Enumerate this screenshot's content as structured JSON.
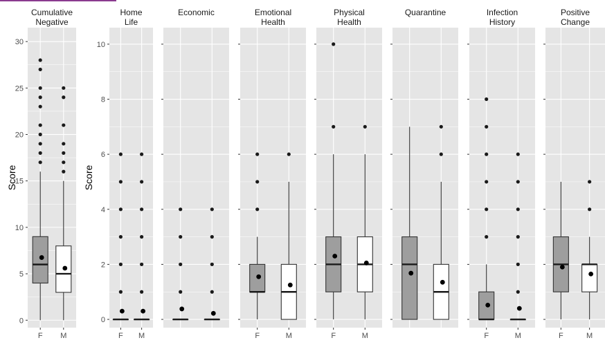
{
  "colors": {
    "panel_bg": "#e5e5e5",
    "grid": "#ffffff",
    "female_fill": "#9e9e9e",
    "male_fill": "#ffffff",
    "box_stroke": "#333333",
    "point": "#1a1a1a",
    "top_accent": "#8a3a8f"
  },
  "chart_data": [
    {
      "type": "box",
      "title": "Cumulative\nNegative",
      "ylabel": "Score",
      "ylim": [
        -0.8,
        31.5
      ],
      "yticks": [
        0,
        5,
        10,
        15,
        20,
        25,
        30
      ],
      "categories": [
        "F",
        "M"
      ],
      "boxes": [
        {
          "category": "F",
          "q1": 4,
          "median": 6,
          "q3": 9,
          "whisker_low": 0,
          "whisker_high": 16,
          "mean": 6.75,
          "outliers": [
            17,
            18,
            19,
            20,
            21,
            23,
            24,
            25,
            27,
            28
          ]
        },
        {
          "category": "M",
          "q1": 3,
          "median": 5,
          "q3": 8,
          "whisker_low": 0,
          "whisker_high": 15,
          "mean": 5.6,
          "outliers": [
            16,
            17,
            18,
            19,
            21,
            24,
            25
          ]
        }
      ]
    },
    {
      "type": "box",
      "title": "Home\nLife",
      "ylabel": "Score",
      "ylim": [
        -0.3,
        10.6
      ],
      "yticks": [
        0,
        2,
        4,
        6,
        8,
        10
      ],
      "categories": [
        "F",
        "M"
      ],
      "boxes": [
        {
          "category": "F",
          "q1": 0,
          "median": 0,
          "q3": 0,
          "whisker_low": 0,
          "whisker_high": 0,
          "mean": 0.3,
          "outliers": [
            1,
            2,
            3,
            4,
            5,
            6
          ]
        },
        {
          "category": "M",
          "q1": 0,
          "median": 0,
          "q3": 0,
          "whisker_low": 0,
          "whisker_high": 0,
          "mean": 0.3,
          "outliers": [
            1,
            2,
            3,
            4,
            5,
            6
          ]
        }
      ]
    },
    {
      "type": "box",
      "title": "Economic",
      "ylim": [
        -0.3,
        10.6
      ],
      "yticks": [
        0,
        2,
        4,
        6,
        8,
        10
      ],
      "categories": [
        "",
        ""
      ],
      "boxes": [
        {
          "category": "F",
          "q1": 0,
          "median": 0,
          "q3": 0,
          "whisker_low": 0,
          "whisker_high": 0,
          "mean": 0.38,
          "outliers": [
            1,
            2,
            3,
            4
          ]
        },
        {
          "category": "M",
          "q1": 0,
          "median": 0,
          "q3": 0,
          "whisker_low": 0,
          "whisker_high": 0,
          "mean": 0.22,
          "outliers": [
            1,
            2,
            3,
            4
          ]
        }
      ]
    },
    {
      "type": "box",
      "title": "Emotional\nHealth",
      "ylim": [
        -0.3,
        10.6
      ],
      "yticks": [
        0,
        2,
        4,
        6,
        8,
        10
      ],
      "categories": [
        "F",
        "M"
      ],
      "boxes": [
        {
          "category": "F",
          "q1": 1,
          "median": 1,
          "q3": 2,
          "whisker_low": 0,
          "whisker_high": 3,
          "mean": 1.55,
          "outliers": [
            4,
            5,
            6
          ]
        },
        {
          "category": "M",
          "q1": 0,
          "median": 1,
          "q3": 2,
          "whisker_low": 0,
          "whisker_high": 5,
          "mean": 1.25,
          "outliers": [
            6
          ]
        }
      ]
    },
    {
      "type": "box",
      "title": "Physical\nHealth",
      "ylim": [
        -0.3,
        10.6
      ],
      "yticks": [
        0,
        2,
        4,
        6,
        8,
        10
      ],
      "categories": [
        "F",
        "M"
      ],
      "boxes": [
        {
          "category": "F",
          "q1": 1,
          "median": 2,
          "q3": 3,
          "whisker_low": 0,
          "whisker_high": 6,
          "mean": 2.3,
          "outliers": [
            7,
            10
          ]
        },
        {
          "category": "M",
          "q1": 1,
          "median": 2,
          "q3": 3,
          "whisker_low": 0,
          "whisker_high": 6,
          "mean": 2.05,
          "outliers": [
            7
          ]
        }
      ]
    },
    {
      "type": "box",
      "title": "Quarantine",
      "ylim": [
        -0.3,
        10.6
      ],
      "yticks": [
        0,
        2,
        4,
        6,
        8,
        10
      ],
      "categories": [
        "",
        ""
      ],
      "boxes": [
        {
          "category": "F",
          "q1": 0,
          "median": 2,
          "q3": 3,
          "whisker_low": 0,
          "whisker_high": 7,
          "mean": 1.68,
          "outliers": []
        },
        {
          "category": "M",
          "q1": 0,
          "median": 1,
          "q3": 2,
          "whisker_low": 0,
          "whisker_high": 5,
          "mean": 1.35,
          "outliers": [
            6,
            7
          ]
        }
      ]
    },
    {
      "type": "box",
      "title": "Infection\nHistory",
      "ylim": [
        -0.3,
        10.6
      ],
      "yticks": [
        0,
        2,
        4,
        6,
        8,
        10
      ],
      "categories": [
        "F",
        "M"
      ],
      "boxes": [
        {
          "category": "F",
          "q1": 0,
          "median": 0,
          "q3": 1,
          "whisker_low": 0,
          "whisker_high": 2,
          "mean": 0.52,
          "outliers": [
            3,
            4,
            5,
            6,
            7,
            8
          ]
        },
        {
          "category": "M",
          "q1": 0,
          "median": 0,
          "q3": 0,
          "whisker_low": 0,
          "whisker_high": 0,
          "mean": 0.4,
          "outliers": [
            1,
            2,
            3,
            4,
            5,
            6
          ]
        }
      ]
    },
    {
      "type": "box",
      "title": "Positive\nChange",
      "ylim": [
        -0.3,
        10.6
      ],
      "yticks": [
        0,
        2,
        4,
        6,
        8,
        10
      ],
      "categories": [
        "F",
        "M"
      ],
      "boxes": [
        {
          "category": "F",
          "q1": 1,
          "median": 2,
          "q3": 3,
          "whisker_low": 0,
          "whisker_high": 5,
          "mean": 1.9,
          "outliers": []
        },
        {
          "category": "M",
          "q1": 1,
          "median": 2,
          "q3": 2,
          "whisker_low": 0,
          "whisker_high": 3,
          "mean": 1.65,
          "outliers": [
            4,
            5
          ]
        }
      ]
    }
  ]
}
